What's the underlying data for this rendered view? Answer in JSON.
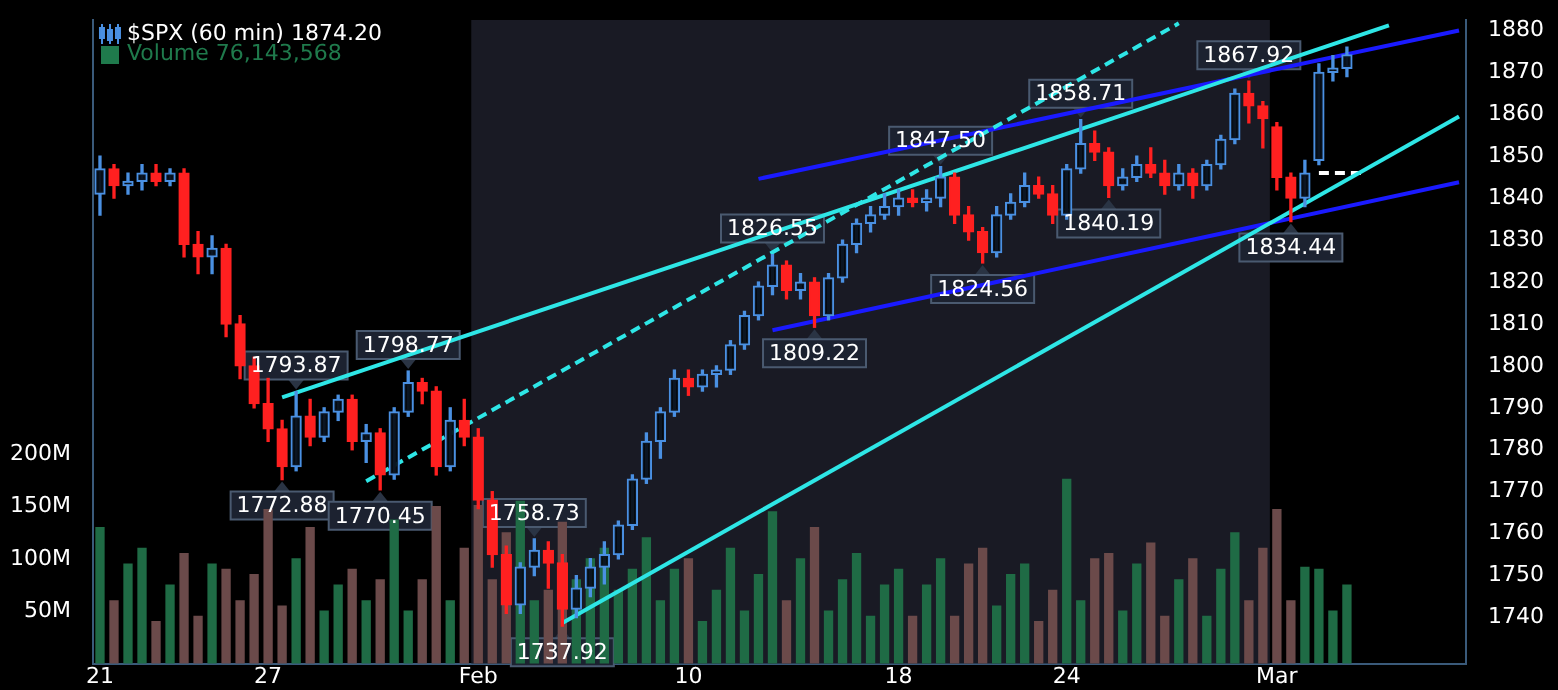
{
  "chart_data": {
    "type": "candlestick",
    "legend": "top left",
    "categories": [
      "21",
      null,
      null,
      null,
      null,
      null,
      null,
      null,
      null,
      null,
      null,
      null,
      "27",
      null,
      null,
      null,
      null,
      null,
      null,
      null,
      null,
      null,
      null,
      null,
      null,
      null,
      null,
      "Feb",
      null,
      null,
      null,
      null,
      null,
      null,
      null,
      null,
      null,
      null,
      null,
      null,
      null,
      null,
      "10",
      null,
      null,
      null,
      null,
      null,
      null,
      null,
      null,
      null,
      null,
      null,
      null,
      null,
      null,
      "18",
      null,
      null,
      null,
      null,
      null,
      null,
      null,
      null,
      null,
      null,
      null,
      "24",
      null,
      null,
      null,
      null,
      null,
      null,
      null,
      null,
      null,
      null,
      null,
      null,
      null,
      null,
      "Mar",
      null,
      null,
      null,
      null,
      null,
      null,
      null,
      null,
      null,
      null,
      null,
      null,
      null
    ],
    "ylim": [
      1729,
      1882.5
    ],
    "yticks": [
      1740,
      1750,
      1760,
      1770,
      1780,
      1790,
      1800,
      1810,
      1820,
      1830,
      1840,
      1850,
      1860,
      1870,
      1880
    ],
    "y2lim": [
      0,
      615
    ],
    "y2ticks": [
      {
        "value": 50,
        "label": "50M"
      },
      {
        "value": 100,
        "label": "100M"
      },
      {
        "value": 150,
        "label": "150M"
      },
      {
        "value": 200,
        "label": "200M"
      }
    ],
    "bands": [
      {
        "axis": "x",
        "from": "Feb",
        "to": "Mar",
        "color": "#191a24"
      }
    ],
    "series": [
      {
        "name": "$SPX (60 min) 1874.20",
        "ohlc": [
          [
            1841,
            1850,
            1836,
            1847
          ],
          [
            1847,
            1848,
            1840,
            1843
          ],
          [
            1843,
            1846,
            1841,
            1844
          ],
          [
            1844,
            1848,
            1842,
            1846
          ],
          [
            1846,
            1848,
            1843,
            1844
          ],
          [
            1844,
            1847,
            1843,
            1846
          ],
          [
            1846,
            1847,
            1826,
            1829
          ],
          [
            1829,
            1832,
            1822,
            1826
          ],
          [
            1826,
            1831,
            1822,
            1828
          ],
          [
            1828,
            1829,
            1807,
            1810
          ],
          [
            1810,
            1812,
            1797,
            1800
          ],
          [
            1800,
            1802,
            1790,
            1791
          ],
          [
            1791,
            1797,
            1782,
            1785
          ],
          [
            1785,
            1787,
            1772.88,
            1776
          ],
          [
            1776,
            1793.87,
            1775,
            1788
          ],
          [
            1788,
            1792,
            1781,
            1783
          ],
          [
            1783,
            1790,
            1782,
            1789
          ],
          [
            1789,
            1793,
            1787,
            1792
          ],
          [
            1792,
            1793,
            1780,
            1782
          ],
          [
            1782,
            1786,
            1777,
            1784
          ],
          [
            1784,
            1785,
            1770.45,
            1774
          ],
          [
            1774,
            1790,
            1773,
            1789
          ],
          [
            1789,
            1798.77,
            1788,
            1796
          ],
          [
            1796,
            1797,
            1791,
            1794
          ],
          [
            1794,
            1795,
            1774,
            1776
          ],
          [
            1776,
            1790,
            1775,
            1787
          ],
          [
            1787,
            1792,
            1781,
            1783
          ],
          [
            1783,
            1785,
            1766,
            1768
          ],
          [
            1768,
            1770,
            1752,
            1755
          ],
          [
            1755,
            1757,
            1741,
            1743
          ],
          [
            1743,
            1753,
            1741,
            1752
          ],
          [
            1752,
            1758.73,
            1750,
            1756
          ],
          [
            1756,
            1758,
            1747,
            1753
          ],
          [
            1753,
            1755,
            1737.92,
            1742
          ],
          [
            1742,
            1750,
            1740,
            1747
          ],
          [
            1747,
            1754,
            1745,
            1752
          ],
          [
            1752,
            1758,
            1748,
            1755
          ],
          [
            1755,
            1763,
            1754,
            1762
          ],
          [
            1762,
            1774,
            1761,
            1773
          ],
          [
            1773,
            1784,
            1772,
            1782
          ],
          [
            1782,
            1790,
            1778,
            1789
          ],
          [
            1789,
            1799,
            1788,
            1797
          ],
          [
            1797,
            1799,
            1793,
            1795
          ],
          [
            1795,
            1799,
            1794,
            1798
          ],
          [
            1798,
            1800,
            1795,
            1799
          ],
          [
            1799,
            1806,
            1798,
            1805
          ],
          [
            1805,
            1813,
            1804,
            1812
          ],
          [
            1812,
            1820,
            1811,
            1819
          ],
          [
            1819,
            1826.55,
            1817,
            1824
          ],
          [
            1824,
            1825,
            1816,
            1818
          ],
          [
            1818,
            1822,
            1816,
            1820
          ],
          [
            1820,
            1821,
            1809.22,
            1812
          ],
          [
            1812,
            1822,
            1811,
            1821
          ],
          [
            1821,
            1830,
            1820,
            1829
          ],
          [
            1829,
            1835,
            1827,
            1834
          ],
          [
            1834,
            1838,
            1832,
            1836
          ],
          [
            1836,
            1841,
            1835,
            1838
          ],
          [
            1838,
            1842,
            1836,
            1840
          ],
          [
            1840,
            1842,
            1838,
            1839
          ],
          [
            1839,
            1842,
            1837,
            1840
          ],
          [
            1840,
            1847.5,
            1838,
            1845
          ],
          [
            1845,
            1846,
            1834,
            1836
          ],
          [
            1836,
            1838,
            1830,
            1832
          ],
          [
            1832,
            1833,
            1824.56,
            1827
          ],
          [
            1827,
            1838,
            1826,
            1836
          ],
          [
            1836,
            1841,
            1835,
            1839
          ],
          [
            1839,
            1846,
            1838,
            1843
          ],
          [
            1843,
            1845,
            1840,
            1841
          ],
          [
            1841,
            1843,
            1834,
            1836
          ],
          [
            1836,
            1848,
            1835,
            1847
          ],
          [
            1847,
            1858.71,
            1846,
            1853
          ],
          [
            1853,
            1856,
            1849,
            1851
          ],
          [
            1851,
            1852,
            1840.19,
            1843
          ],
          [
            1843,
            1847,
            1842,
            1845
          ],
          [
            1845,
            1850,
            1844,
            1848
          ],
          [
            1848,
            1852,
            1845,
            1846
          ],
          [
            1846,
            1849,
            1841,
            1843
          ],
          [
            1843,
            1848,
            1842,
            1846
          ],
          [
            1846,
            1847,
            1840,
            1843
          ],
          [
            1843,
            1849,
            1842,
            1848
          ],
          [
            1848,
            1855,
            1847,
            1854
          ],
          [
            1854,
            1866,
            1853,
            1865
          ],
          [
            1865,
            1867.92,
            1858,
            1862
          ],
          [
            1862,
            1863,
            1852,
            1859
          ],
          [
            1857,
            1858,
            1842,
            1845
          ],
          [
            1845,
            1846,
            1834.44,
            1840
          ],
          [
            1840,
            1849,
            1838,
            1846
          ],
          [
            1849,
            1872,
            1848,
            1870
          ],
          [
            1870,
            1874,
            1868,
            1871
          ],
          [
            1871,
            1876,
            1869,
            1874.2
          ],
          null,
          null,
          null,
          null,
          null,
          null,
          null,
          null
        ],
        "colors": [
          "#4a90e2",
          "#ff2020",
          "#4a90e2",
          "#4a90e2",
          "#ff2020",
          "#4a90e2",
          "#ff2020",
          "#ff2020",
          "#4a90e2",
          "#ff2020",
          "#ff2020",
          "#ff2020",
          "#ff2020",
          "#ff2020",
          "#4a90e2",
          "#ff2020",
          "#4a90e2",
          "#4a90e2",
          "#ff2020",
          "#4a90e2",
          "#ff2020",
          "#4a90e2",
          "#4a90e2",
          "#ff2020",
          "#ff2020",
          "#4a90e2",
          "#ff2020",
          "#ff2020",
          "#ff2020",
          "#ff2020",
          "#4a90e2",
          "#4a90e2",
          "#ff2020",
          "#ff2020",
          "#4a90e2",
          "#4a90e2",
          "#4a90e2",
          "#4a90e2",
          "#4a90e2",
          "#4a90e2",
          "#4a90e2",
          "#4a90e2",
          "#ff2020",
          "#4a90e2",
          "#4a90e2",
          "#4a90e2",
          "#4a90e2",
          "#4a90e2",
          "#4a90e2",
          "#ff2020",
          "#4a90e2",
          "#ff2020",
          "#4a90e2",
          "#4a90e2",
          "#4a90e2",
          "#4a90e2",
          "#4a90e2",
          "#4a90e2",
          "#ff2020",
          "#4a90e2",
          "#4a90e2",
          "#ff2020",
          "#ff2020",
          "#ff2020",
          "#4a90e2",
          "#4a90e2",
          "#4a90e2",
          "#ff2020",
          "#ff2020",
          "#4a90e2",
          "#4a90e2",
          "#ff2020",
          "#ff2020",
          "#4a90e2",
          "#4a90e2",
          "#ff2020",
          "#ff2020",
          "#4a90e2",
          "#ff2020",
          "#4a90e2",
          "#4a90e2",
          "#4a90e2",
          "#ff2020",
          "#ff2020",
          "#ff2020",
          "#ff2020",
          "#4a90e2",
          "#4a90e2",
          "#4a90e2",
          "#4a90e2",
          null,
          null,
          null,
          null,
          null,
          null,
          null,
          null
        ]
      },
      {
        "type": "bar",
        "name": "Volume 76,143,568",
        "axis": "y2",
        "color": "#1f7a4c",
        "values": [
          130,
          60,
          95,
          110,
          40,
          75,
          105,
          45,
          95,
          90,
          60,
          85,
          147,
          55,
          100,
          130,
          50,
          75,
          90,
          60,
          80,
          137,
          50,
          80,
          150,
          60,
          110,
          151,
          80,
          125,
          155,
          60,
          70,
          135,
          80,
          100,
          110,
          70,
          90,
          120,
          60,
          90,
          100,
          40,
          70,
          110,
          50,
          85,
          145,
          60,
          100,
          130,
          50,
          80,
          105,
          45,
          75,
          90,
          45,
          75,
          100,
          45,
          95,
          110,
          55,
          85,
          95,
          40,
          70,
          176,
          60,
          100,
          105,
          50,
          95,
          115,
          45,
          80,
          100,
          45,
          90,
          125,
          60,
          110,
          147,
          60,
          92,
          90,
          50,
          75,
          null,
          null,
          null,
          null,
          null,
          null,
          null,
          null
        ],
        "colors": [
          "#1f6b45",
          "#6b4a4a",
          "#1f6b45",
          "#1f6b45",
          "#6b4a4a",
          "#1f6b45",
          "#6b4a4a",
          "#6b4a4a",
          "#1f6b45",
          "#6b4a4a",
          "#6b4a4a",
          "#6b4a4a",
          "#6b4a4a",
          "#6b4a4a",
          "#1f6b45",
          "#6b4a4a",
          "#1f6b45",
          "#1f6b45",
          "#6b4a4a",
          "#1f6b45",
          "#6b4a4a",
          "#1f6b45",
          "#1f6b45",
          "#6b4a4a",
          "#6b4a4a",
          "#1f6b45",
          "#6b4a4a",
          "#6b4a4a",
          "#6b4a4a",
          "#6b4a4a",
          "#1f6b45",
          "#1f6b45",
          "#6b4a4a",
          "#6b4a4a",
          "#1f6b45",
          "#1f6b45",
          "#1f6b45",
          "#1f6b45",
          "#1f6b45",
          "#1f6b45",
          "#1f6b45",
          "#1f6b45",
          "#6b4a4a",
          "#1f6b45",
          "#1f6b45",
          "#1f6b45",
          "#1f6b45",
          "#1f6b45",
          "#1f6b45",
          "#6b4a4a",
          "#1f6b45",
          "#6b4a4a",
          "#1f6b45",
          "#1f6b45",
          "#1f6b45",
          "#1f6b45",
          "#1f6b45",
          "#1f6b45",
          "#6b4a4a",
          "#1f6b45",
          "#1f6b45",
          "#6b4a4a",
          "#6b4a4a",
          "#6b4a4a",
          "#1f6b45",
          "#1f6b45",
          "#1f6b45",
          "#6b4a4a",
          "#6b4a4a",
          "#1f6b45",
          "#1f6b45",
          "#6b4a4a",
          "#6b4a4a",
          "#1f6b45",
          "#1f6b45",
          "#6b4a4a",
          "#6b4a4a",
          "#1f6b45",
          "#6b4a4a",
          "#1f6b45",
          "#1f6b45",
          "#1f6b45",
          "#6b4a4a",
          "#6b4a4a",
          "#6b4a4a",
          "#6b4a4a",
          "#1f6b45",
          "#1f6b45",
          "#1f6b45",
          "#1f6b45",
          null,
          null,
          null,
          null,
          null,
          null,
          null,
          null
        ]
      },
      {
        "type": "line",
        "color": "#2ee6e6",
        "line_style": "solid",
        "values": [
          null,
          null,
          null,
          null,
          null,
          null,
          null,
          null,
          null,
          null,
          null,
          null,
          null,
          1792.5,
          null,
          null,
          null,
          null,
          null,
          null,
          null,
          null,
          null,
          null,
          null,
          null,
          null,
          null,
          null,
          null,
          null,
          null,
          null,
          null,
          null,
          null,
          null,
          null,
          null,
          null,
          null,
          null,
          null,
          null,
          null,
          null,
          null,
          null,
          null,
          null,
          null,
          null,
          null,
          null,
          null,
          null,
          null,
          null,
          null,
          null,
          null,
          null,
          null,
          null,
          null,
          null,
          null,
          null,
          null,
          null,
          null,
          null,
          null,
          null,
          null,
          null,
          null,
          null,
          null,
          null,
          null,
          null,
          null,
          null,
          null,
          null,
          null,
          null,
          null,
          null,
          null,
          null,
          1881.2,
          null,
          null,
          null,
          null,
          null
        ]
      },
      {
        "type": "line",
        "color": "#2ee6e6",
        "line_style": "dashed",
        "values": [
          null,
          null,
          null,
          null,
          null,
          null,
          null,
          null,
          null,
          null,
          null,
          null,
          null,
          null,
          null,
          null,
          null,
          null,
          null,
          1772.5,
          null,
          null,
          null,
          null,
          null,
          null,
          null,
          null,
          null,
          null,
          null,
          null,
          null,
          null,
          null,
          null,
          null,
          null,
          null,
          null,
          null,
          null,
          null,
          null,
          null,
          null,
          null,
          null,
          null,
          null,
          null,
          null,
          null,
          null,
          null,
          null,
          null,
          null,
          null,
          null,
          null,
          null,
          null,
          null,
          null,
          null,
          null,
          null,
          null,
          null,
          null,
          null,
          null,
          null,
          null,
          null,
          null,
          1881.7,
          null,
          null,
          null,
          null,
          null,
          null,
          null,
          null,
          null,
          null,
          null,
          null,
          null,
          null,
          null,
          null,
          null,
          null,
          null,
          null
        ]
      },
      {
        "type": "line",
        "color": "#2ee6e6",
        "line_style": "solid",
        "values": [
          null,
          null,
          null,
          null,
          null,
          null,
          null,
          null,
          null,
          null,
          null,
          null,
          null,
          null,
          null,
          null,
          null,
          null,
          null,
          null,
          null,
          null,
          null,
          null,
          null,
          null,
          null,
          null,
          null,
          null,
          null,
          null,
          null,
          1738.7,
          null,
          null,
          null,
          null,
          null,
          null,
          null,
          null,
          null,
          null,
          null,
          null,
          null,
          null,
          null,
          null,
          null,
          null,
          null,
          null,
          null,
          null,
          null,
          null,
          null,
          null,
          null,
          null,
          null,
          null,
          null,
          null,
          null,
          null,
          null,
          null,
          null,
          null,
          null,
          null,
          null,
          null,
          null,
          null,
          null,
          null,
          null,
          null,
          null,
          null,
          null,
          null,
          null,
          null,
          null,
          null,
          null,
          null,
          null,
          null,
          null,
          null,
          null,
          1859.5
        ]
      },
      {
        "type": "line",
        "color": "#1a1aff",
        "line_style": "solid",
        "values": [
          null,
          null,
          null,
          null,
          null,
          null,
          null,
          null,
          null,
          null,
          null,
          null,
          null,
          null,
          null,
          null,
          null,
          null,
          null,
          null,
          null,
          null,
          null,
          null,
          null,
          null,
          null,
          null,
          null,
          null,
          null,
          null,
          null,
          null,
          null,
          null,
          null,
          null,
          null,
          null,
          null,
          null,
          null,
          null,
          null,
          null,
          null,
          1844.6,
          null,
          null,
          null,
          null,
          null,
          null,
          null,
          null,
          null,
          null,
          null,
          null,
          null,
          null,
          null,
          null,
          null,
          null,
          null,
          null,
          null,
          null,
          null,
          null,
          null,
          null,
          null,
          null,
          null,
          null,
          null,
          null,
          null,
          null,
          null,
          null,
          null,
          null,
          null,
          null,
          null,
          null,
          null,
          null,
          null,
          null,
          null,
          null,
          null,
          1880
        ]
      },
      {
        "type": "line",
        "color": "#1a1aff",
        "line_style": "solid",
        "values": [
          null,
          null,
          null,
          null,
          null,
          null,
          null,
          null,
          null,
          null,
          null,
          null,
          null,
          null,
          null,
          null,
          null,
          null,
          null,
          null,
          null,
          null,
          null,
          null,
          null,
          null,
          null,
          null,
          null,
          null,
          null,
          null,
          null,
          null,
          null,
          null,
          null,
          null,
          null,
          null,
          null,
          null,
          null,
          null,
          null,
          null,
          null,
          null,
          1808.5,
          null,
          null,
          null,
          null,
          null,
          null,
          null,
          null,
          null,
          null,
          null,
          null,
          null,
          null,
          null,
          null,
          null,
          null,
          null,
          null,
          null,
          null,
          null,
          null,
          null,
          null,
          null,
          null,
          null,
          null,
          null,
          null,
          null,
          null,
          null,
          null,
          null,
          null,
          null,
          null,
          null,
          null,
          null,
          null,
          null,
          null,
          null,
          null,
          1843.8
        ]
      },
      {
        "type": "line",
        "color": "#ffffff",
        "line_style": "dashed",
        "values": [
          null,
          null,
          null,
          null,
          null,
          null,
          null,
          null,
          null,
          null,
          null,
          null,
          null,
          null,
          null,
          null,
          null,
          null,
          null,
          null,
          null,
          null,
          null,
          null,
          null,
          null,
          null,
          null,
          null,
          null,
          null,
          null,
          null,
          null,
          null,
          null,
          null,
          null,
          null,
          null,
          null,
          null,
          null,
          null,
          null,
          null,
          null,
          null,
          null,
          null,
          null,
          null,
          null,
          null,
          null,
          null,
          null,
          null,
          null,
          null,
          null,
          null,
          null,
          null,
          null,
          null,
          null,
          null,
          null,
          null,
          null,
          null,
          null,
          null,
          null,
          null,
          null,
          null,
          null,
          null,
          null,
          null,
          null,
          null,
          null,
          null,
          null,
          1846,
          null,
          null,
          1846,
          null,
          null,
          null,
          null,
          null,
          null,
          null
        ]
      }
    ],
    "annotations": [
      {
        "text": "1793.87",
        "y": 1793.87
      },
      {
        "text": "1772.88",
        "y": 1772.88
      },
      {
        "text": "1798.77",
        "y": 1798.77
      },
      {
        "text": "1770.45",
        "y": 1770.45
      },
      {
        "text": "1758.73",
        "y": 1758.73
      },
      {
        "text": "1737.92",
        "y": 1737.92
      },
      {
        "text": "1826.55",
        "y": 1826.55
      },
      {
        "text": "1809.22",
        "y": 1809.22
      },
      {
        "text": "1847.50",
        "y": 1847.5
      },
      {
        "text": "1824.56",
        "y": 1824.56
      },
      {
        "text": "1858.71",
        "y": 1858.71
      },
      {
        "text": "1840.19",
        "y": 1840.19
      },
      {
        "text": "1867.92",
        "y": 1867.92
      },
      {
        "text": "1834.44",
        "y": 1834.44
      }
    ]
  }
}
